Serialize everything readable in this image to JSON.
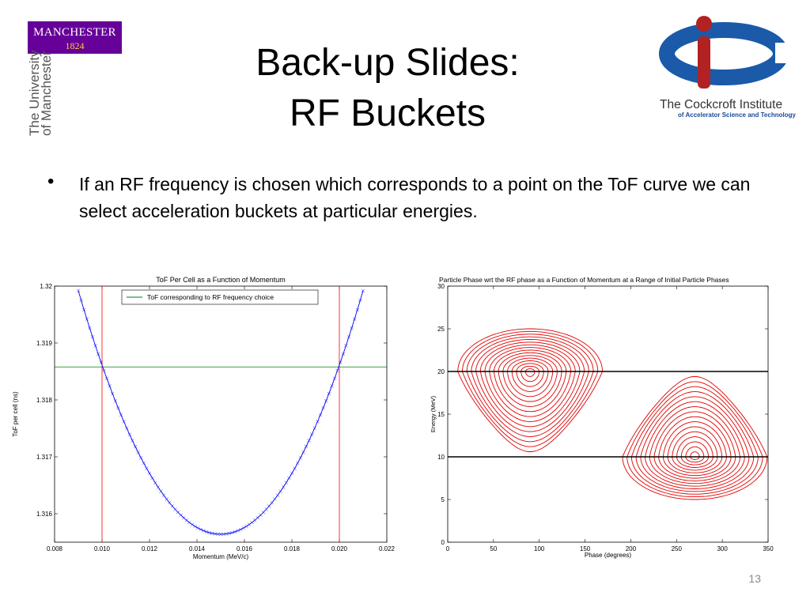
{
  "slide": {
    "title_line1": "Back-up Slides:",
    "title_line2": "RF Buckets",
    "bullet_glyph": "•",
    "bullet_text": "If an RF frequency is chosen which corresponds to a point on the ToF curve we can select acceleration buckets at particular energies.",
    "page_number": "13"
  },
  "logos": {
    "manchester_name": "MANCHESTER",
    "manchester_year": "1824",
    "manchester_university": "The University of Manchester",
    "cockcroft_name": "The Cockcroft Institute",
    "cockcroft_subtitle": "of Accelerator Science and Technology",
    "manchester_purple": "#660099",
    "manchester_gold": "#ffcc33",
    "cockcroft_blue": "#1a5aa8",
    "cockcroft_red": "#b22222"
  },
  "chart_data": [
    {
      "type": "line",
      "title": "ToF Per Cell as a Function of Momentum",
      "xlabel": "Momentum (MeV/c)",
      "ylabel": "ToF per cell (ns)",
      "xlim": [
        0.008,
        0.022
      ],
      "ylim": [
        1.3155,
        1.32
      ],
      "xticks": [
        "0.008",
        "0.010",
        "0.012",
        "0.014",
        "0.016",
        "0.018",
        "0.020",
        "0.022"
      ],
      "yticks": [
        "1.316",
        "1.317",
        "1.318",
        "1.319",
        "1.32"
      ],
      "ytick_values": [
        1.316,
        1.317,
        1.318,
        1.319,
        1.32
      ],
      "legend": {
        "entry": "ToF corresponding to RF frequency choice",
        "placement": "top-center"
      },
      "curve": {
        "color": "#0000ff",
        "marker": "x",
        "x_min": 0.009,
        "x_max": 0.021,
        "vertex_x": 0.015,
        "vertex_y": 1.31564,
        "points_through": [
          [
            0.009,
            1.31992
          ],
          [
            0.01,
            1.31858
          ],
          [
            0.02,
            1.31858
          ],
          [
            0.021,
            1.31992
          ]
        ]
      },
      "hline": {
        "y": 1.31858,
        "color": "#008000"
      },
      "vlines": [
        {
          "x": 0.01,
          "color": "#ff0000"
        },
        {
          "x": 0.02,
          "color": "#ff0000"
        }
      ],
      "grid": false
    },
    {
      "type": "line",
      "title": "Particle Phase wrt the RF phase as a Function of Momentum at a Range of Initial Particle Phases",
      "xlabel": "Phase (degrees)",
      "ylabel": "Energy (MeV)",
      "xlim": [
        0,
        350
      ],
      "ylim": [
        0,
        30
      ],
      "xticks": [
        "0",
        "50",
        "100",
        "150",
        "200",
        "250",
        "300",
        "350"
      ],
      "yticks": [
        "0",
        "5",
        "10",
        "15",
        "20",
        "25",
        "30"
      ],
      "hlines": [
        {
          "y": 20,
          "color": "#000000"
        },
        {
          "y": 10,
          "color": "#000000"
        }
      ],
      "buckets": [
        {
          "center_phase": 90,
          "center_energy": 20,
          "outer_top": 25,
          "outer_bottom": 10.6,
          "outer_left": 12,
          "outer_right": 170,
          "orientation": "point-down",
          "contours": 16,
          "color": "#e00000"
        },
        {
          "center_phase": 270,
          "center_energy": 10,
          "outer_top": 19.4,
          "outer_bottom": 5,
          "outer_left": 192,
          "outer_right": 350,
          "orientation": "point-up",
          "contours": 16,
          "color": "#e00000"
        }
      ],
      "grid": false
    }
  ]
}
